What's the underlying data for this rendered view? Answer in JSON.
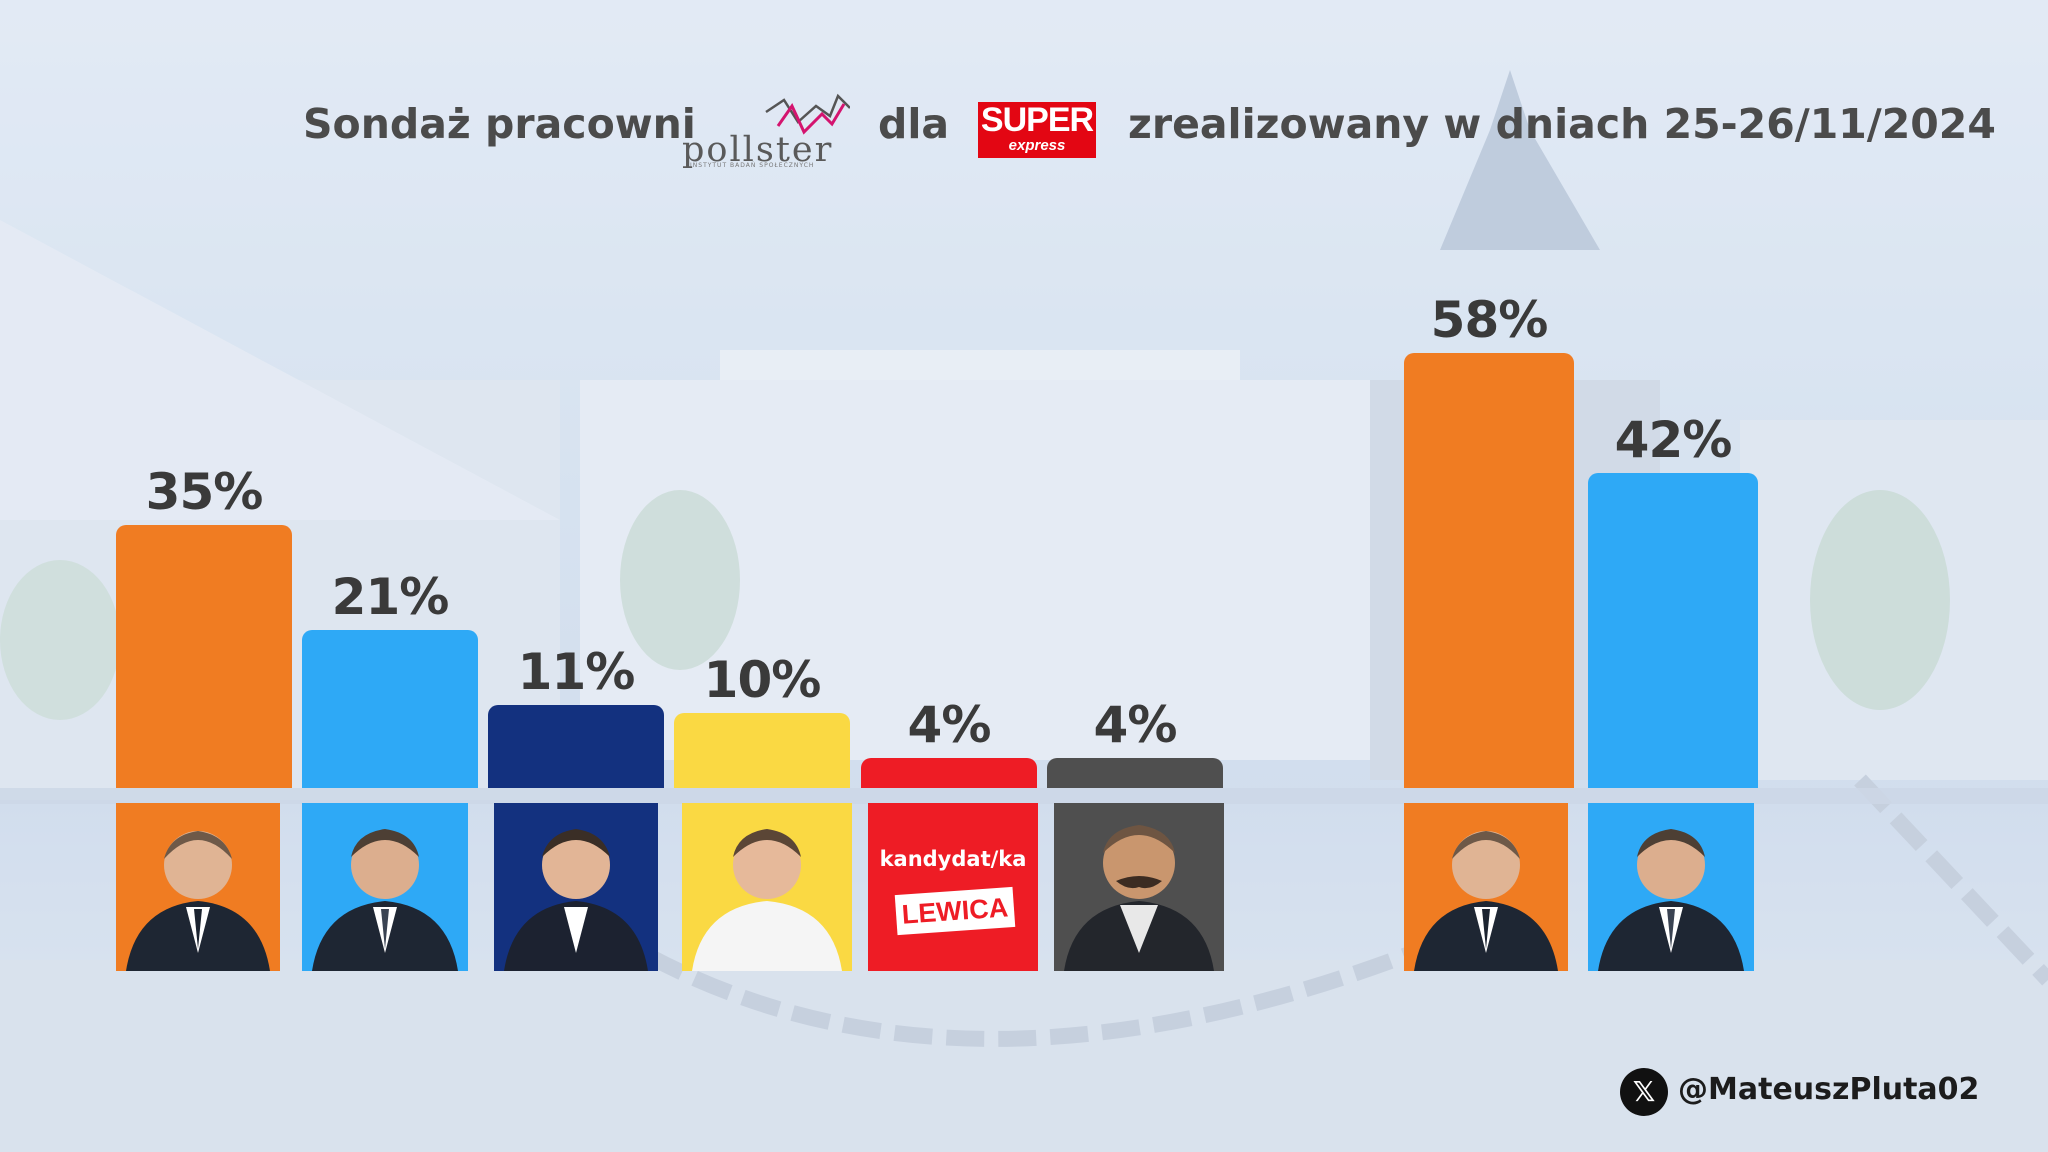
{
  "header": {
    "prefix": "Sondaż pracowni",
    "pollster_logo_text": "pollster",
    "pollster_logo_subtext": "INSTYTUT BADAŃ SPOŁECZNYCH",
    "connector": "dla",
    "partner_logo_top": "SUPER",
    "partner_logo_bottom": "express",
    "suffix": "zrealizowany w dniach 25-26/11/2024"
  },
  "chart_data": [
    {
      "type": "bar",
      "title": "",
      "categories": [
        "",
        "",
        "",
        "",
        "",
        ""
      ],
      "values": [
        35,
        21,
        11,
        10,
        4,
        4
      ],
      "value_labels": [
        "35%",
        "21%",
        "11%",
        "10%",
        "4%",
        "4%"
      ],
      "colors": [
        "#f07c22",
        "#2ea9f6",
        "#13317f",
        "#fad943",
        "#ee1c25",
        "#4f4f4f"
      ],
      "ylim": [
        0,
        60
      ],
      "grid": false,
      "legend": "none"
    },
    {
      "type": "bar",
      "title": "",
      "categories": [
        "",
        ""
      ],
      "values": [
        58,
        42
      ],
      "value_labels": [
        "58%",
        "42%"
      ],
      "colors": [
        "#f07c22",
        "#2ea9f6"
      ],
      "ylim": [
        0,
        60
      ],
      "grid": false,
      "legend": "none"
    }
  ],
  "candidates": {
    "placeholder_text": "kandydat/ka",
    "placeholder_party": "LEWICA"
  },
  "footer": {
    "social_icon": "x-logo-icon",
    "handle": "@MateuszPluta02"
  }
}
